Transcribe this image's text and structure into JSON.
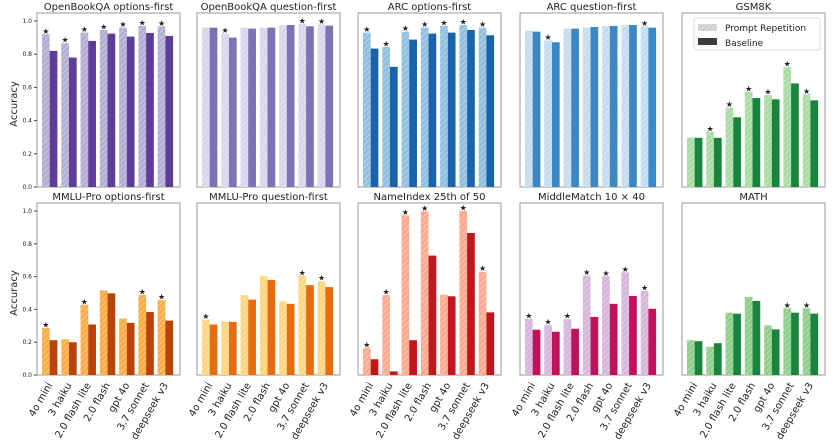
{
  "chart_data": {
    "type": "bar",
    "ylabel": "Accuracy",
    "ylim": [
      0,
      1.0
    ],
    "yticks": [
      "0.0",
      "0.2",
      "0.4",
      "0.6",
      "0.8",
      "1.0"
    ],
    "categories": [
      "4o mini",
      "3 haiku",
      "2.0 flash lite",
      "2.0 flash",
      "gpt 4o",
      "3.7 sonnet",
      "deepseek v3"
    ],
    "legend": {
      "placement": "top-right",
      "panel": "GSM8K",
      "entries": [
        "Prompt Repetition",
        "Baseline"
      ]
    },
    "significance_marker": "★",
    "panels": [
      {
        "title": "OpenBookQA options-first",
        "colors": {
          "repetition": "#b3aed4",
          "baseline": "#5e3c99"
        },
        "series": [
          {
            "name": "Prompt Repetition",
            "values": [
              0.92,
              0.866,
              0.93,
              0.946,
              0.96,
              0.97,
              0.968
            ]
          },
          {
            "name": "Baseline",
            "values": [
              0.82,
              0.78,
              0.88,
              0.924,
              0.906,
              0.928,
              0.91
            ]
          }
        ],
        "starred": [
          true,
          true,
          true,
          true,
          true,
          true,
          true
        ]
      },
      {
        "title": "OpenBookQA question-first",
        "colors": {
          "repetition": "#d8d6ec",
          "baseline": "#7b73b5"
        },
        "series": [
          {
            "name": "Prompt Repetition",
            "values": [
              0.96,
              0.924,
              0.96,
              0.96,
              0.974,
              0.982,
              0.98
            ]
          },
          {
            "name": "Baseline",
            "values": [
              0.96,
              0.9,
              0.954,
              0.96,
              0.976,
              0.968,
              0.972
            ]
          }
        ],
        "starred": [
          false,
          true,
          false,
          false,
          false,
          true,
          true
        ]
      },
      {
        "title": "ARC options-first",
        "colors": {
          "repetition": "#8fc0e0",
          "baseline": "#1a63ac"
        },
        "series": [
          {
            "name": "Prompt Repetition",
            "values": [
              0.93,
              0.844,
              0.936,
              0.96,
              0.97,
              0.976,
              0.96
            ]
          },
          {
            "name": "Baseline",
            "values": [
              0.834,
              0.724,
              0.888,
              0.924,
              0.93,
              0.946,
              0.914
            ]
          }
        ],
        "starred": [
          true,
          true,
          true,
          true,
          true,
          true,
          true
        ]
      },
      {
        "title": "ARC question-first",
        "colors": {
          "repetition": "#c4dcf0",
          "baseline": "#3b88c4"
        },
        "series": [
          {
            "name": "Prompt Repetition",
            "values": [
              0.942,
              0.882,
              0.954,
              0.96,
              0.97,
              0.974,
              0.968
            ]
          },
          {
            "name": "Baseline",
            "values": [
              0.936,
              0.872,
              0.954,
              0.964,
              0.97,
              0.976,
              0.96
            ]
          }
        ],
        "starred": [
          false,
          true,
          false,
          false,
          false,
          false,
          true
        ]
      },
      {
        "title": "GSM8K",
        "colors": {
          "repetition": "#a8dca2",
          "baseline": "#1a843f"
        },
        "series": [
          {
            "name": "Prompt Repetition",
            "values": [
              0.298,
              0.332,
              0.478,
              0.572,
              0.554,
              0.722,
              0.558
            ]
          },
          {
            "name": "Baseline",
            "values": [
              0.296,
              0.296,
              0.42,
              0.536,
              0.528,
              0.624,
              0.522
            ]
          }
        ],
        "starred": [
          false,
          true,
          true,
          true,
          true,
          true,
          true
        ]
      },
      {
        "title": "MMLU-Pro options-first",
        "colors": {
          "repetition": "#fbac45",
          "baseline": "#b8440a"
        },
        "series": [
          {
            "name": "Prompt Repetition",
            "values": [
              0.286,
              0.218,
              0.428,
              0.516,
              0.344,
              0.488,
              0.456
            ]
          },
          {
            "name": "Baseline",
            "values": [
              0.212,
              0.2,
              0.308,
              0.498,
              0.318,
              0.384,
              0.332
            ]
          }
        ],
        "starred": [
          true,
          false,
          true,
          false,
          false,
          true,
          true
        ]
      },
      {
        "title": "MMLU-Pro question-first",
        "colors": {
          "repetition": "#fdd57f",
          "baseline": "#e66c12"
        },
        "series": [
          {
            "name": "Prompt Repetition",
            "values": [
              0.338,
              0.326,
              0.488,
              0.604,
              0.45,
              0.604,
              0.572
            ]
          },
          {
            "name": "Baseline",
            "values": [
              0.308,
              0.324,
              0.46,
              0.58,
              0.434,
              0.548,
              0.536
            ]
          }
        ],
        "starred": [
          true,
          false,
          false,
          false,
          false,
          true,
          true
        ]
      },
      {
        "title": "NameIndex 25th of 50",
        "colors": {
          "repetition": "#fcaa8f",
          "baseline": "#c0171f"
        },
        "series": [
          {
            "name": "Prompt Repetition",
            "values": [
              0.166,
              0.488,
              0.974,
              0.998,
              0.49,
              1.0,
              0.63
            ]
          },
          {
            "name": "Baseline",
            "values": [
              0.096,
              0.022,
              0.212,
              0.728,
              0.48,
              0.866,
              0.382
            ]
          }
        ],
        "starred": [
          true,
          true,
          true,
          true,
          false,
          true,
          true
        ]
      },
      {
        "title": "MiddleMatch 10 × 40",
        "colors": {
          "repetition": "#d8b5da",
          "baseline": "#c0125a"
        },
        "series": [
          {
            "name": "Prompt Repetition",
            "values": [
              0.342,
              0.304,
              0.34,
              0.606,
              0.602,
              0.626,
              0.512
            ]
          },
          {
            "name": "Baseline",
            "values": [
              0.276,
              0.264,
              0.282,
              0.354,
              0.434,
              0.482,
              0.404
            ]
          }
        ],
        "starred": [
          true,
          true,
          true,
          true,
          true,
          true,
          true
        ]
      },
      {
        "title": "MATH",
        "colors": {
          "repetition": "#8fcf8a",
          "baseline": "#1a843f"
        },
        "series": [
          {
            "name": "Prompt Repetition",
            "values": [
              0.212,
              0.172,
              0.38,
              0.476,
              0.302,
              0.406,
              0.406
            ]
          },
          {
            "name": "Baseline",
            "values": [
              0.206,
              0.194,
              0.374,
              0.452,
              0.278,
              0.38,
              0.374
            ]
          }
        ],
        "starred": [
          false,
          false,
          false,
          false,
          false,
          true,
          true
        ]
      }
    ]
  }
}
